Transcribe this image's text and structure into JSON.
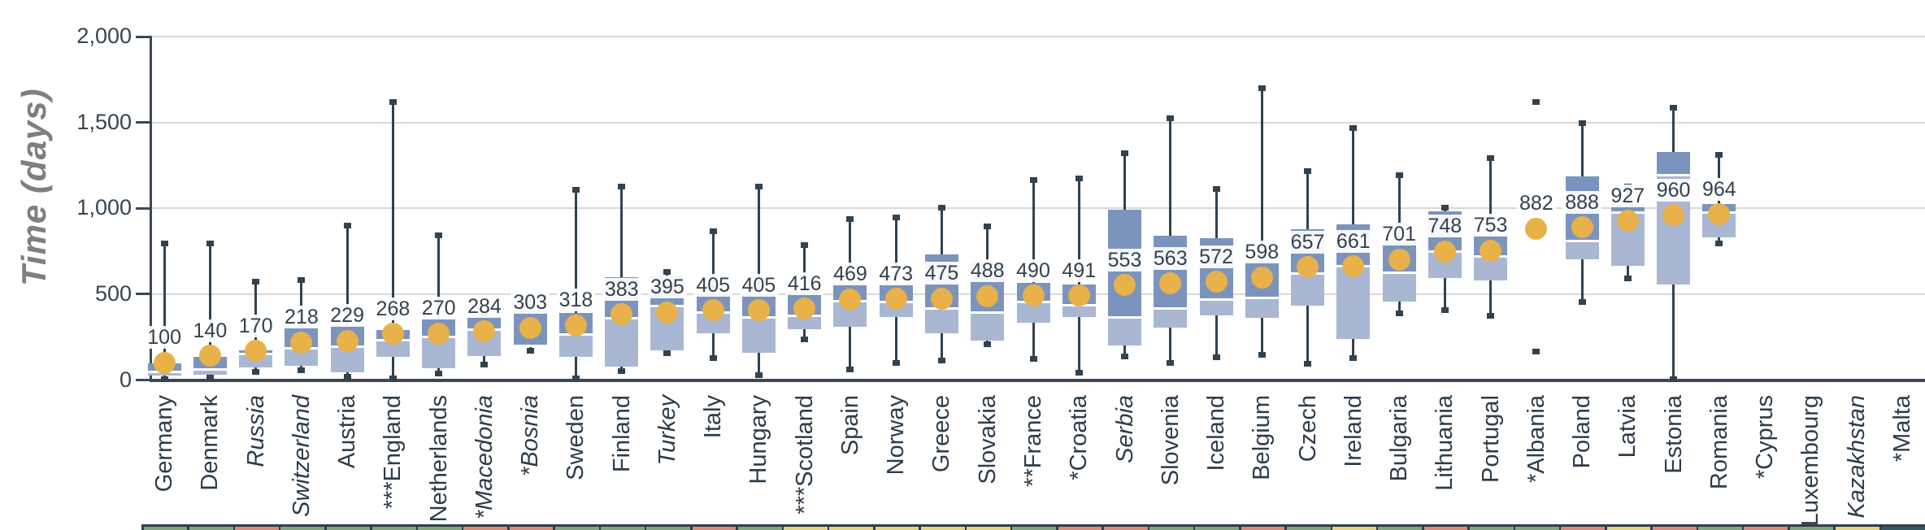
{
  "chart_data": {
    "type": "boxplot",
    "title": "",
    "ylabel": "Time (days)",
    "xlabel": "",
    "ylim": [
      0,
      2000
    ],
    "grid": "horizontal",
    "legend": "none",
    "yticks": [
      {
        "value": 0,
        "label": "0"
      },
      {
        "value": 500,
        "label": "500"
      },
      {
        "value": 1000,
        "label": "1,000"
      },
      {
        "value": 1500,
        "label": "1,500"
      },
      {
        "value": 2000,
        "label": "2,000"
      }
    ],
    "colors": {
      "box_upper": "#7b94bd",
      "box_lower": "#a9b7d3",
      "mean_dot": "#e8b14a",
      "whisker": "#32424f",
      "axis": "#3b4754",
      "grid": "#d8d8d8",
      "value_label_text": "#33414e",
      "tick_text": "#36454f",
      "ylabel_text": "#7f7f7f",
      "strip_palette": {
        "green": "#84a47e",
        "salmon": "#d68c76",
        "yellow": "#e2d383",
        "teal": "#3a565e"
      }
    },
    "countries": [
      {
        "label": "Germany",
        "italic": false,
        "mean": 100,
        "min": 5,
        "q1": 25,
        "median": 45,
        "q3": 95,
        "max": 800,
        "strip": "green"
      },
      {
        "label": "Denmark",
        "italic": false,
        "mean": 140,
        "min": 15,
        "q1": 30,
        "median": 60,
        "q3": 135,
        "max": 800,
        "strip": "green"
      },
      {
        "label": "Russia",
        "italic": true,
        "mean": 170,
        "min": 50,
        "q1": 75,
        "median": 150,
        "q3": 175,
        "max": 575,
        "strip": "salmon"
      },
      {
        "label": "Switzerland",
        "italic": true,
        "mean": 218,
        "min": 60,
        "q1": 85,
        "median": 185,
        "q3": 310,
        "max": 585,
        "strip": "green"
      },
      {
        "label": "Austria",
        "italic": false,
        "mean": 229,
        "min": 20,
        "q1": 45,
        "median": 195,
        "q3": 320,
        "max": 900,
        "strip": "green"
      },
      {
        "label": "***England",
        "italic": false,
        "mean": 268,
        "min": 10,
        "q1": 135,
        "median": 230,
        "q3": 290,
        "max": 1620,
        "strip": "green"
      },
      {
        "label": "Netherlands",
        "italic": false,
        "mean": 270,
        "min": 40,
        "q1": 70,
        "median": 250,
        "q3": 355,
        "max": 845,
        "strip": "green"
      },
      {
        "label": "*Macedonia",
        "italic": true,
        "mean": 284,
        "min": 90,
        "q1": 140,
        "median": 295,
        "q3": 370,
        "max": 380,
        "strip": "salmon"
      },
      {
        "label": "*Bosnia",
        "italic": true,
        "mean": 303,
        "min": 175,
        "q1": 195,
        "median": 200,
        "q3": 405,
        "max": 495,
        "strip": "salmon"
      },
      {
        "label": "Sweden",
        "italic": false,
        "mean": 318,
        "min": 10,
        "q1": 135,
        "median": 265,
        "q3": 390,
        "max": 1110,
        "strip": "green"
      },
      {
        "label": "Finland",
        "italic": false,
        "mean": 383,
        "min": 55,
        "q1": 80,
        "median": 360,
        "q3": 600,
        "max": 1130,
        "strip": "green"
      },
      {
        "label": "Turkey",
        "italic": true,
        "mean": 395,
        "min": 160,
        "q1": 175,
        "median": 430,
        "q3": 610,
        "max": 630,
        "strip": "green"
      },
      {
        "label": "Italy",
        "italic": false,
        "mean": 405,
        "min": 130,
        "q1": 270,
        "median": 395,
        "q3": 505,
        "max": 870,
        "strip": "salmon"
      },
      {
        "label": "Hungary",
        "italic": false,
        "mean": 405,
        "min": 30,
        "q1": 160,
        "median": 365,
        "q3": 500,
        "max": 1130,
        "strip": "green"
      },
      {
        "label": "***Scotland",
        "italic": false,
        "mean": 416,
        "min": 240,
        "q1": 295,
        "median": 375,
        "q3": 515,
        "max": 790,
        "strip": "yellow"
      },
      {
        "label": "Spain",
        "italic": false,
        "mean": 469,
        "min": 65,
        "q1": 310,
        "median": 460,
        "q3": 565,
        "max": 940,
        "strip": "yellow"
      },
      {
        "label": "Norway",
        "italic": false,
        "mean": 473,
        "min": 100,
        "q1": 365,
        "median": 455,
        "q3": 565,
        "max": 950,
        "strip": "yellow"
      },
      {
        "label": "Greece",
        "italic": false,
        "mean": 475,
        "min": 115,
        "q1": 270,
        "median": 415,
        "q3": 730,
        "max": 1005,
        "strip": "yellow"
      },
      {
        "label": "Slovakia",
        "italic": false,
        "mean": 488,
        "min": 210,
        "q1": 230,
        "median": 395,
        "q3": 690,
        "max": 895,
        "strip": "yellow"
      },
      {
        "label": "**France",
        "italic": false,
        "mean": 490,
        "min": 125,
        "q1": 335,
        "median": 455,
        "q3": 565,
        "max": 1165,
        "strip": "green"
      },
      {
        "label": "*Croatia",
        "italic": false,
        "mean": 491,
        "min": 45,
        "q1": 365,
        "median": 435,
        "q3": 555,
        "max": 1175,
        "strip": "salmon"
      },
      {
        "label": "Serbia",
        "italic": true,
        "mean": 553,
        "min": 140,
        "q1": 200,
        "median": 365,
        "q3": 990,
        "max": 1325,
        "strip": "salmon"
      },
      {
        "label": "Slovenia",
        "italic": false,
        "mean": 563,
        "min": 100,
        "q1": 305,
        "median": 415,
        "q3": 840,
        "max": 1525,
        "strip": "green"
      },
      {
        "label": "Iceland",
        "italic": false,
        "mean": 572,
        "min": 135,
        "q1": 375,
        "median": 470,
        "q3": 825,
        "max": 1115,
        "strip": "green"
      },
      {
        "label": "Belgium",
        "italic": false,
        "mean": 598,
        "min": 150,
        "q1": 360,
        "median": 480,
        "q3": 690,
        "max": 1700,
        "strip": "salmon"
      },
      {
        "label": "Czech",
        "italic": false,
        "mean": 657,
        "min": 95,
        "q1": 435,
        "median": 620,
        "q3": 880,
        "max": 1220,
        "strip": "green"
      },
      {
        "label": "Ireland",
        "italic": false,
        "mean": 661,
        "min": 130,
        "q1": 240,
        "median": 665,
        "q3": 905,
        "max": 1470,
        "strip": "yellow"
      },
      {
        "label": "Bulgaria",
        "italic": false,
        "mean": 701,
        "min": 390,
        "q1": 455,
        "median": 625,
        "q3": 805,
        "max": 1195,
        "strip": "green"
      },
      {
        "label": "Lithuania",
        "italic": false,
        "mean": 748,
        "min": 410,
        "q1": 595,
        "median": 750,
        "q3": 980,
        "max": 1005,
        "strip": "salmon"
      },
      {
        "label": "Portugal",
        "italic": false,
        "mean": 753,
        "min": 375,
        "q1": 580,
        "median": 720,
        "q3": 845,
        "max": 1295,
        "strip": "green"
      },
      {
        "label": "*Albania",
        "italic": false,
        "mean": 882,
        "min": null,
        "q1": null,
        "median": null,
        "q3": null,
        "max": null,
        "points": [
          1620,
          170
        ],
        "strip": "green"
      },
      {
        "label": "Poland",
        "italic": false,
        "mean": 888,
        "min": 455,
        "q1": 705,
        "median": 810,
        "q3": 1185,
        "max": 1500,
        "strip": "salmon"
      },
      {
        "label": "Latvia",
        "italic": false,
        "mean": 927,
        "min": 595,
        "q1": 665,
        "median": 975,
        "q3": 1025,
        "max": 1130,
        "strip": "yellow"
      },
      {
        "label": "Estonia",
        "italic": false,
        "mean": 960,
        "min": 5,
        "q1": 555,
        "median": 1195,
        "q3": 1330,
        "max": 1590,
        "strip": "salmon"
      },
      {
        "label": "Romania",
        "italic": false,
        "mean": 964,
        "min": 800,
        "q1": 830,
        "median": 975,
        "q3": 1025,
        "max": 1315,
        "strip": "green"
      },
      {
        "label": "*Cyprus",
        "italic": false,
        "mean": null,
        "min": null,
        "q1": null,
        "median": null,
        "q3": null,
        "max": null,
        "strip": "salmon"
      },
      {
        "label": "Luxembourg",
        "italic": false,
        "mean": null,
        "min": null,
        "q1": null,
        "median": null,
        "q3": null,
        "max": null,
        "strip": "green"
      },
      {
        "label": "Kazakhstan",
        "italic": true,
        "mean": null,
        "min": null,
        "q1": null,
        "median": null,
        "q3": null,
        "max": null,
        "strip": "yellow"
      },
      {
        "label": "*Malta",
        "italic": false,
        "mean": null,
        "min": null,
        "q1": null,
        "median": null,
        "q3": null,
        "max": null,
        "strip": "teal"
      }
    ]
  }
}
